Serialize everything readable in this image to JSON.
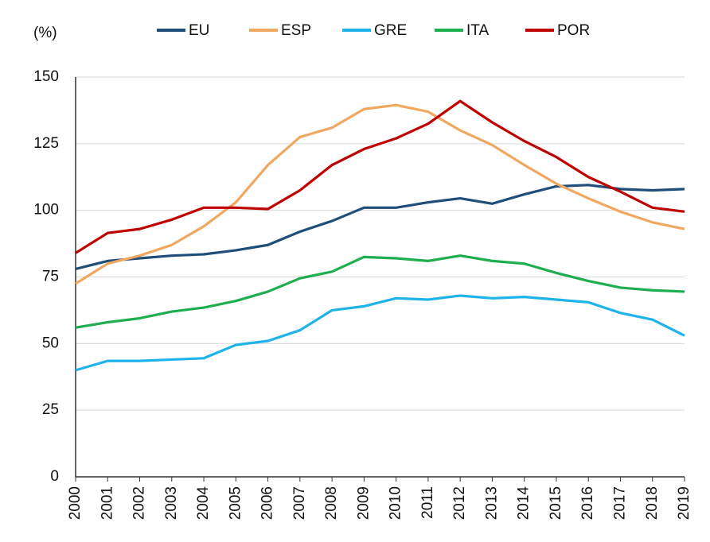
{
  "chart_data": {
    "type": "line",
    "y_label": "(%)",
    "categories": [
      "2000",
      "2001",
      "2002",
      "2003",
      "2004",
      "2005",
      "2006",
      "2007",
      "2008",
      "2009",
      "2010",
      "2011",
      "2012",
      "2013",
      "2014",
      "2015",
      "2016",
      "2017",
      "2018",
      "2019"
    ],
    "series": [
      {
        "name": "EU",
        "color": "#1f4e79",
        "values": [
          78,
          81,
          82,
          83,
          83.5,
          85,
          87,
          92,
          96,
          101,
          101,
          103,
          104.5,
          102.5,
          106,
          109,
          109.5,
          108,
          107.5,
          108
        ]
      },
      {
        "name": "ESP",
        "color": "#f0a860",
        "values": [
          72.5,
          80,
          83,
          87,
          94,
          103,
          117,
          127.5,
          131,
          138,
          139.5,
          137,
          130,
          124.5,
          117,
          110,
          104.5,
          99.5,
          95.5,
          93
        ]
      },
      {
        "name": "GRE",
        "color": "#1eb4ea",
        "values": [
          40,
          43.5,
          43.5,
          44,
          44.5,
          49.5,
          51,
          55,
          62.5,
          64,
          67,
          66.5,
          68,
          67,
          67.5,
          66.5,
          65.5,
          61.5,
          59,
          53
        ]
      },
      {
        "name": "ITA",
        "color": "#1fae4f",
        "values": [
          56,
          58,
          59.5,
          62,
          63.5,
          66,
          69.5,
          74.5,
          77,
          82.5,
          82,
          81,
          83,
          81,
          80,
          76.5,
          73.5,
          71,
          70,
          69.5
        ]
      },
      {
        "name": "POR",
        "color": "#c00000",
        "values": [
          84,
          91.5,
          93,
          96.5,
          101,
          101,
          100.5,
          107.5,
          117,
          123,
          127,
          132.5,
          141,
          133,
          126,
          120,
          112.5,
          107,
          101,
          99.5
        ]
      }
    ],
    "ylim": [
      0,
      150
    ],
    "yticks": [
      0,
      25,
      50,
      75,
      100,
      125,
      150
    ],
    "grid": true,
    "legend": "top"
  }
}
